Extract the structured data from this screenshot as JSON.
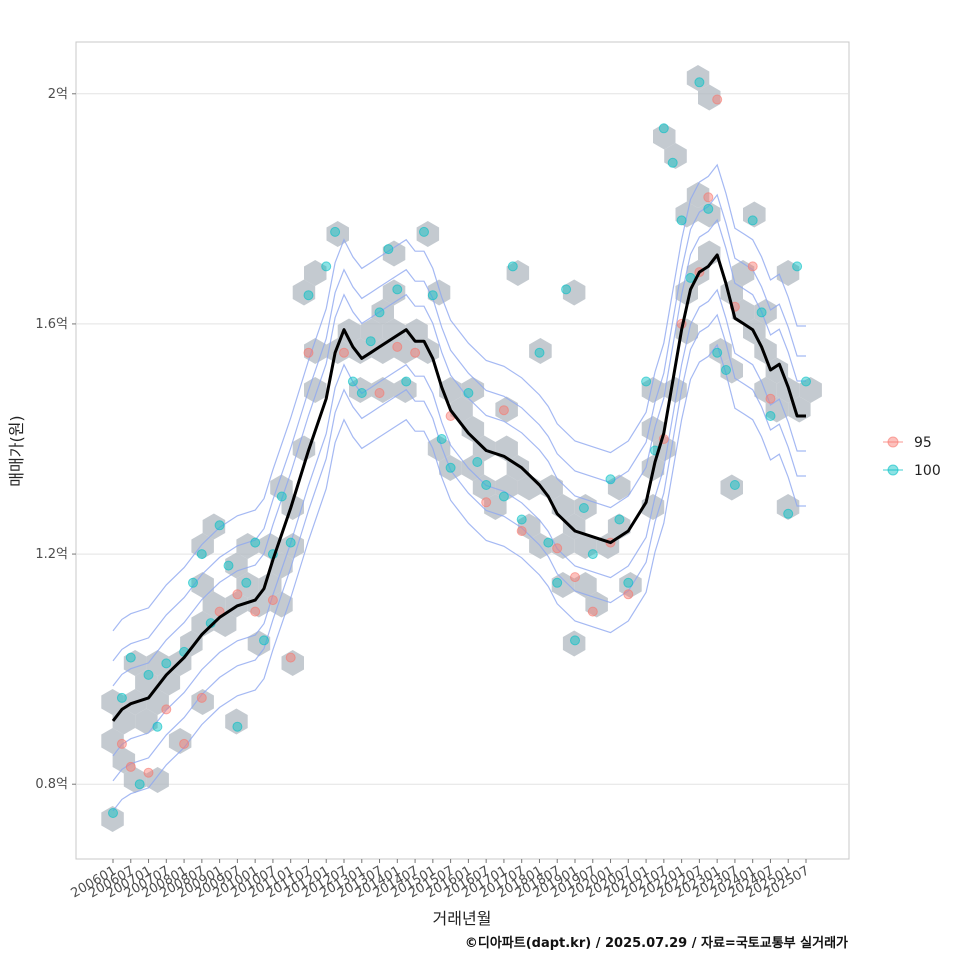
{
  "chart_data": {
    "type": "scatter",
    "xlabel": "거래년월",
    "ylabel": "매매가(원)",
    "caption": "©디아파트(dapt.kr) / 2025.07.29 / 자료=국토교통부 실거래가",
    "x_range": [
      "2006-01",
      "2025-07"
    ],
    "ylim": [
      0.67,
      2.09
    ],
    "y_unit": "억",
    "y_ticks": [
      0.8,
      1.2,
      1.6,
      2.0
    ],
    "y_tick_labels": [
      "0.8억",
      "1.2억",
      "1.6억",
      "2억"
    ],
    "x_tick_labels": [
      "200601",
      "200607",
      "200701",
      "200707",
      "200801",
      "200807",
      "200901",
      "200907",
      "201001",
      "201007",
      "201101",
      "201107",
      "201201",
      "201207",
      "201301",
      "201307",
      "201401",
      "201407",
      "201501",
      "201507",
      "201601",
      "201607",
      "201701",
      "201707",
      "201801",
      "201807",
      "201901",
      "201907",
      "202001",
      "202007",
      "202101",
      "202107",
      "202201",
      "202207",
      "202301",
      "202307",
      "202401",
      "202407",
      "202501",
      "202507"
    ],
    "grid": true,
    "legend_position": "right",
    "legend": [
      {
        "name": "95",
        "color": "#F8766D"
      },
      {
        "name": "100",
        "color": "#00BFC4"
      }
    ],
    "colors": {
      "hexbin": "#b0b8c0",
      "contour": "#8fa8f0",
      "trend": "#000000"
    },
    "trend_line": [
      [
        "2006-01",
        0.91
      ],
      [
        "2006-04",
        0.93
      ],
      [
        "2006-07",
        0.94
      ],
      [
        "2007-01",
        0.95
      ],
      [
        "2007-04",
        0.97
      ],
      [
        "2007-07",
        0.99
      ],
      [
        "2008-01",
        1.02
      ],
      [
        "2008-07",
        1.06
      ],
      [
        "2009-01",
        1.09
      ],
      [
        "2009-07",
        1.11
      ],
      [
        "2010-01",
        1.12
      ],
      [
        "2010-04",
        1.14
      ],
      [
        "2010-07",
        1.19
      ],
      [
        "2011-01",
        1.28
      ],
      [
        "2011-07",
        1.38
      ],
      [
        "2012-01",
        1.47
      ],
      [
        "2012-04",
        1.55
      ],
      [
        "2012-07",
        1.59
      ],
      [
        "2012-10",
        1.56
      ],
      [
        "2013-01",
        1.54
      ],
      [
        "2013-04",
        1.55
      ],
      [
        "2013-07",
        1.56
      ],
      [
        "2014-01",
        1.58
      ],
      [
        "2014-04",
        1.59
      ],
      [
        "2014-07",
        1.57
      ],
      [
        "2014-10",
        1.57
      ],
      [
        "2015-01",
        1.54
      ],
      [
        "2015-04",
        1.49
      ],
      [
        "2015-07",
        1.45
      ],
      [
        "2016-01",
        1.41
      ],
      [
        "2016-07",
        1.38
      ],
      [
        "2017-01",
        1.37
      ],
      [
        "2017-07",
        1.35
      ],
      [
        "2018-01",
        1.32
      ],
      [
        "2018-04",
        1.3
      ],
      [
        "2018-07",
        1.27
      ],
      [
        "2019-01",
        1.24
      ],
      [
        "2019-07",
        1.23
      ],
      [
        "2020-01",
        1.22
      ],
      [
        "2020-07",
        1.24
      ],
      [
        "2021-01",
        1.29
      ],
      [
        "2021-04",
        1.36
      ],
      [
        "2021-07",
        1.41
      ],
      [
        "2021-10",
        1.5
      ],
      [
        "2022-01",
        1.59
      ],
      [
        "2022-04",
        1.66
      ],
      [
        "2022-07",
        1.69
      ],
      [
        "2022-10",
        1.7
      ],
      [
        "2023-01",
        1.72
      ],
      [
        "2023-04",
        1.67
      ],
      [
        "2023-07",
        1.61
      ],
      [
        "2023-10",
        1.6
      ],
      [
        "2024-01",
        1.59
      ],
      [
        "2024-04",
        1.56
      ],
      [
        "2024-07",
        1.52
      ],
      [
        "2024-10",
        1.53
      ],
      [
        "2025-01",
        1.49
      ],
      [
        "2025-04",
        1.44
      ],
      [
        "2025-07",
        1.44
      ]
    ],
    "series": [
      {
        "name": "95",
        "points": [
          [
            "2006-04",
            0.87
          ],
          [
            "2006-07",
            0.83
          ],
          [
            "2007-01",
            0.82
          ],
          [
            "2007-07",
            0.93
          ],
          [
            "2008-01",
            0.87
          ],
          [
            "2008-07",
            0.95
          ],
          [
            "2009-01",
            1.1
          ],
          [
            "2009-07",
            1.13
          ],
          [
            "2010-01",
            1.1
          ],
          [
            "2010-07",
            1.12
          ],
          [
            "2011-01",
            1.02
          ],
          [
            "2011-07",
            1.55
          ],
          [
            "2012-07",
            1.55
          ],
          [
            "2013-07",
            1.48
          ],
          [
            "2014-01",
            1.56
          ],
          [
            "2014-07",
            1.55
          ],
          [
            "2015-07",
            1.44
          ],
          [
            "2016-07",
            1.29
          ],
          [
            "2017-01",
            1.45
          ],
          [
            "2017-07",
            1.24
          ],
          [
            "2018-07",
            1.21
          ],
          [
            "2019-01",
            1.16
          ],
          [
            "2019-07",
            1.1
          ],
          [
            "2020-01",
            1.22
          ],
          [
            "2020-07",
            1.13
          ],
          [
            "2021-07",
            1.4
          ],
          [
            "2022-01",
            1.6
          ],
          [
            "2022-07",
            1.69
          ],
          [
            "2022-10",
            1.82
          ],
          [
            "2023-01",
            1.99
          ],
          [
            "2023-07",
            1.63
          ],
          [
            "2024-01",
            1.7
          ],
          [
            "2024-07",
            1.47
          ]
        ]
      },
      {
        "name": "100",
        "points": [
          [
            "2006-01",
            0.75
          ],
          [
            "2006-04",
            0.95
          ],
          [
            "2006-07",
            1.02
          ],
          [
            "2006-10",
            0.8
          ],
          [
            "2007-01",
            0.99
          ],
          [
            "2007-04",
            0.9
          ],
          [
            "2007-07",
            1.01
          ],
          [
            "2008-01",
            1.03
          ],
          [
            "2008-04",
            1.15
          ],
          [
            "2008-07",
            1.2
          ],
          [
            "2008-10",
            1.08
          ],
          [
            "2009-01",
            1.25
          ],
          [
            "2009-04",
            1.18
          ],
          [
            "2009-07",
            0.9
          ],
          [
            "2009-10",
            1.15
          ],
          [
            "2010-01",
            1.22
          ],
          [
            "2010-04",
            1.05
          ],
          [
            "2010-07",
            1.2
          ],
          [
            "2010-10",
            1.3
          ],
          [
            "2011-01",
            1.22
          ],
          [
            "2011-07",
            1.65
          ],
          [
            "2012-01",
            1.7
          ],
          [
            "2012-04",
            1.76
          ],
          [
            "2012-10",
            1.5
          ],
          [
            "2013-01",
            1.48
          ],
          [
            "2013-04",
            1.57
          ],
          [
            "2013-07",
            1.62
          ],
          [
            "2013-10",
            1.73
          ],
          [
            "2014-01",
            1.66
          ],
          [
            "2014-04",
            1.5
          ],
          [
            "2014-10",
            1.76
          ],
          [
            "2015-01",
            1.65
          ],
          [
            "2015-04",
            1.4
          ],
          [
            "2015-07",
            1.35
          ],
          [
            "2016-01",
            1.48
          ],
          [
            "2016-04",
            1.36
          ],
          [
            "2016-07",
            1.32
          ],
          [
            "2017-01",
            1.3
          ],
          [
            "2017-04",
            1.7
          ],
          [
            "2017-07",
            1.26
          ],
          [
            "2018-01",
            1.55
          ],
          [
            "2018-04",
            1.22
          ],
          [
            "2018-07",
            1.15
          ],
          [
            "2018-10",
            1.66
          ],
          [
            "2019-01",
            1.05
          ],
          [
            "2019-04",
            1.28
          ],
          [
            "2019-07",
            1.2
          ],
          [
            "2020-01",
            1.33
          ],
          [
            "2020-04",
            1.26
          ],
          [
            "2020-07",
            1.15
          ],
          [
            "2021-01",
            1.5
          ],
          [
            "2021-04",
            1.38
          ],
          [
            "2021-07",
            1.94
          ],
          [
            "2021-10",
            1.88
          ],
          [
            "2022-01",
            1.78
          ],
          [
            "2022-04",
            1.68
          ],
          [
            "2022-07",
            2.02
          ],
          [
            "2022-10",
            1.8
          ],
          [
            "2023-01",
            1.55
          ],
          [
            "2023-04",
            1.52
          ],
          [
            "2023-07",
            1.32
          ],
          [
            "2024-01",
            1.78
          ],
          [
            "2024-04",
            1.62
          ],
          [
            "2024-07",
            1.44
          ],
          [
            "2025-01",
            1.27
          ],
          [
            "2025-04",
            1.7
          ],
          [
            "2025-07",
            1.5
          ]
        ]
      }
    ]
  }
}
